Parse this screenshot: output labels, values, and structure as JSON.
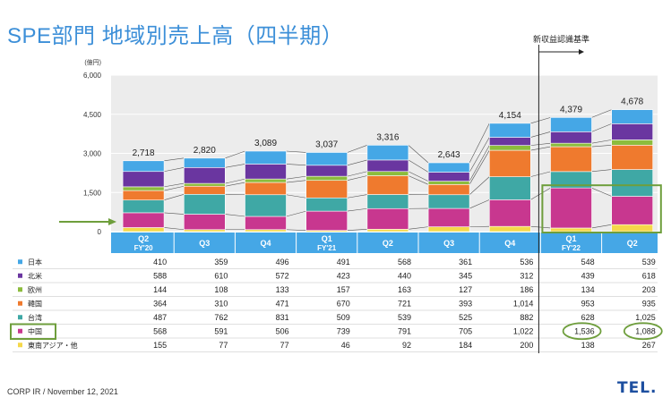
{
  "title": "SPE部門 地域別売上高（四半期）",
  "footer": "CORP IR / November 12, 2021",
  "logo_text": "TEL.",
  "annotation_text": "新収益認識基準",
  "chart_data": {
    "type": "bar",
    "stacked": true,
    "unit_label": "(億円)",
    "ylim": [
      0,
      6000
    ],
    "yticks": [
      "0",
      "1,500",
      "3,000",
      "4,500",
      "6,000"
    ],
    "ytick_values": [
      0,
      1500,
      3000,
      4500,
      6000
    ],
    "categories": [
      "Q2",
      "Q3",
      "Q4",
      "Q1",
      "Q2",
      "Q3",
      "Q4",
      "Q1",
      "Q2"
    ],
    "fy_labels": [
      "FY'20",
      "",
      "",
      "FY'21",
      "",
      "",
      "",
      "FY'22",
      ""
    ],
    "totals": [
      "2,718",
      "2,820",
      "3,089",
      "3,037",
      "3,316",
      "2,643",
      "4,154",
      "4,379",
      "4,678"
    ],
    "total_values": [
      2718,
      2820,
      3089,
      3037,
      3316,
      2643,
      4154,
      4379,
      4678
    ],
    "series": [
      {
        "name": "東南アジア・他",
        "color": "#f5d84a",
        "values": [
          155,
          77,
          77,
          46,
          92,
          184,
          200,
          138,
          267
        ],
        "labels": [
          "155",
          "77",
          "77",
          "46",
          "92",
          "184",
          "200",
          "138",
          "267"
        ]
      },
      {
        "name": "中国",
        "color": "#c8378f",
        "values": [
          568,
          591,
          506,
          739,
          791,
          705,
          1022,
          1536,
          1088
        ],
        "labels": [
          "568",
          "591",
          "506",
          "739",
          "791",
          "705",
          "1,022",
          "1,536",
          "1,088"
        ]
      },
      {
        "name": "台湾",
        "color": "#3fa8a5",
        "values": [
          487,
          762,
          831,
          509,
          539,
          525,
          882,
          628,
          1025
        ],
        "labels": [
          "487",
          "762",
          "831",
          "509",
          "539",
          "525",
          "882",
          "628",
          "1,025"
        ]
      },
      {
        "name": "韓国",
        "color": "#ef7a2e",
        "values": [
          364,
          310,
          471,
          670,
          721,
          393,
          1014,
          953,
          935
        ],
        "labels": [
          "364",
          "310",
          "471",
          "670",
          "721",
          "393",
          "1,014",
          "953",
          "935"
        ]
      },
      {
        "name": "欧州",
        "color": "#8cbc3d",
        "values": [
          144,
          108,
          133,
          157,
          163,
          127,
          186,
          134,
          203
        ],
        "labels": [
          "144",
          "108",
          "133",
          "157",
          "163",
          "127",
          "186",
          "134",
          "203"
        ]
      },
      {
        "name": "北米",
        "color": "#6a36a0",
        "values": [
          588,
          610,
          572,
          423,
          440,
          345,
          312,
          439,
          618
        ],
        "labels": [
          "588",
          "610",
          "572",
          "423",
          "440",
          "345",
          "312",
          "439",
          "618"
        ]
      },
      {
        "name": "日本",
        "color": "#45a7e6",
        "values": [
          410,
          359,
          496,
          491,
          568,
          361,
          536,
          548,
          539
        ],
        "labels": [
          "410",
          "359",
          "496",
          "491",
          "568",
          "361",
          "536",
          "548",
          "539"
        ]
      }
    ],
    "table_row_order": [
      6,
      5,
      4,
      3,
      2,
      1,
      0
    ],
    "highlight_series": "中国",
    "highlight_categories": [
      7,
      8
    ]
  },
  "colors": {
    "title": "#3c8fd8",
    "header_bg": "#45a7e6",
    "plot_bg": "#ececec",
    "highlight": "#6e9e3c",
    "connector": "#555555"
  }
}
